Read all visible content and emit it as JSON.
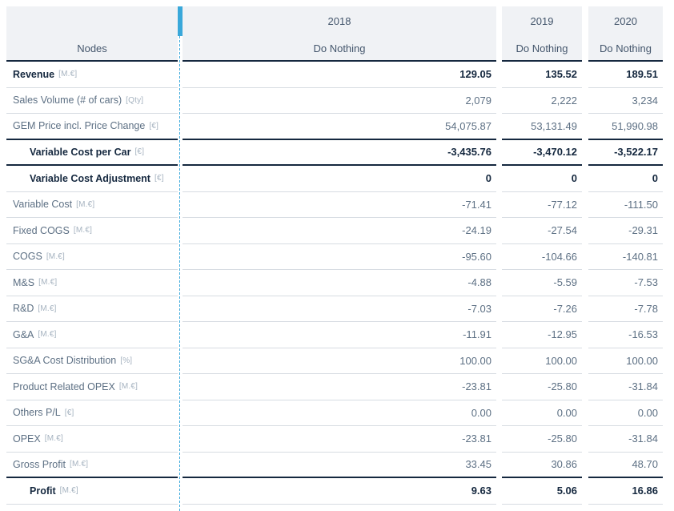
{
  "table": {
    "nodes_header": "Nodes",
    "columns": [
      {
        "year": "2018",
        "scenario": "Do Nothing"
      },
      {
        "year": "2019",
        "scenario": "Do Nothing"
      },
      {
        "year": "2020",
        "scenario": "Do Nothing"
      }
    ],
    "rows": [
      {
        "label": "Revenue",
        "unit": "[M.€]",
        "emphasis": true,
        "indent": false,
        "values": [
          "129.05",
          "135.52",
          "189.51"
        ]
      },
      {
        "label": "Sales Volume (# of cars)",
        "unit": "[Qty]",
        "emphasis": false,
        "indent": false,
        "values": [
          "2,079",
          "2,222",
          "3,234"
        ]
      },
      {
        "label": "GEM Price incl. Price Change",
        "unit": "[€]",
        "emphasis": false,
        "indent": false,
        "values": [
          "54,075.87",
          "53,131.49",
          "51,990.98"
        ]
      },
      {
        "label": "Variable Cost per Car",
        "unit": "[€]",
        "emphasis": true,
        "indent": true,
        "values": [
          "-3,435.76",
          "-3,470.12",
          "-3,522.17"
        ]
      },
      {
        "label": "Variable Cost Adjustment",
        "unit": "[€]",
        "emphasis": true,
        "indent": true,
        "values": [
          "0",
          "0",
          "0"
        ]
      },
      {
        "label": "Variable Cost",
        "unit": "[M.€]",
        "emphasis": false,
        "indent": false,
        "values": [
          "-71.41",
          "-77.12",
          "-111.50"
        ]
      },
      {
        "label": "Fixed COGS",
        "unit": "[M.€]",
        "emphasis": false,
        "indent": false,
        "values": [
          "-24.19",
          "-27.54",
          "-29.31"
        ]
      },
      {
        "label": "COGS",
        "unit": "[M.€]",
        "emphasis": false,
        "indent": false,
        "values": [
          "-95.60",
          "-104.66",
          "-140.81"
        ]
      },
      {
        "label": "M&S",
        "unit": "[M.€]",
        "emphasis": false,
        "indent": false,
        "values": [
          "-4.88",
          "-5.59",
          "-7.53"
        ]
      },
      {
        "label": "R&D",
        "unit": "[M.€]",
        "emphasis": false,
        "indent": false,
        "values": [
          "-7.03",
          "-7.26",
          "-7.78"
        ]
      },
      {
        "label": "G&A",
        "unit": "[M.€]",
        "emphasis": false,
        "indent": false,
        "values": [
          "-11.91",
          "-12.95",
          "-16.53"
        ]
      },
      {
        "label": "SG&A Cost Distribution",
        "unit": "[%]",
        "emphasis": false,
        "indent": false,
        "values": [
          "100.00",
          "100.00",
          "100.00"
        ]
      },
      {
        "label": "Product Related OPEX",
        "unit": "[M.€]",
        "emphasis": false,
        "indent": false,
        "values": [
          "-23.81",
          "-25.80",
          "-31.84"
        ]
      },
      {
        "label": "Others P/L",
        "unit": "[€]",
        "emphasis": false,
        "indent": false,
        "values": [
          "0.00",
          "0.00",
          "0.00"
        ]
      },
      {
        "label": "OPEX",
        "unit": "[M.€]",
        "emphasis": false,
        "indent": false,
        "values": [
          "-23.81",
          "-25.80",
          "-31.84"
        ]
      },
      {
        "label": "Gross Profit",
        "unit": "[M.€]",
        "emphasis": false,
        "indent": false,
        "values": [
          "33.45",
          "30.86",
          "48.70"
        ]
      },
      {
        "label": "Profit",
        "unit": "[M.€]",
        "emphasis": true,
        "indent": true,
        "values": [
          "9.63",
          "5.06",
          "16.86"
        ]
      }
    ],
    "colors": {
      "accent_blue": "#39a8da",
      "dark_navy": "#15283f",
      "text_gray": "#5d7084",
      "unit_gray": "#a6b3c0",
      "header_bg": "#f0f2f5",
      "light_border": "#d7dce2"
    }
  }
}
